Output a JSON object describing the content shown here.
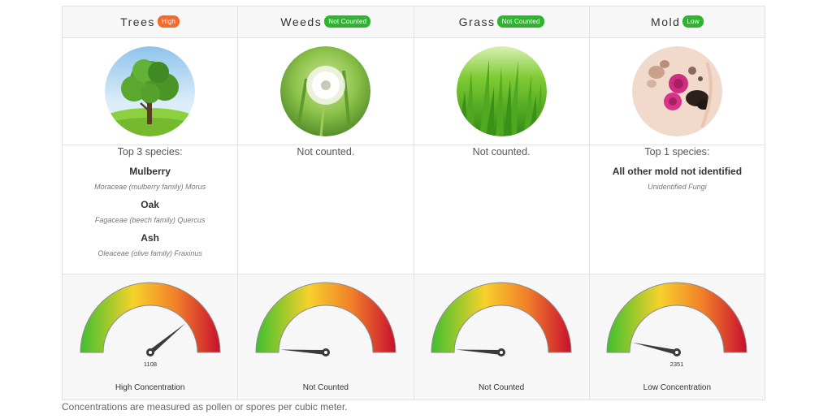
{
  "categories": [
    {
      "title": "Trees",
      "badge": "High",
      "badge_color": "#f26b2c",
      "image": "tree-photo",
      "species_heading": "Top 3 species:",
      "species": [
        {
          "name": "Mulberry",
          "scientific": "Moraceae (mulberry family) Morus"
        },
        {
          "name": "Oak",
          "scientific": "Fagaceae (beech family) Quercus"
        },
        {
          "name": "Ash",
          "scientific": "Oleaceae (olive family) Fraxinus"
        }
      ],
      "gauge_fraction": 0.78,
      "gauge_value": "1108",
      "concentration_label": "High Concentration"
    },
    {
      "title": "Weeds",
      "badge": "Not Counted",
      "badge_color": "#2db52d",
      "image": "dandelion-photo",
      "species_heading": "Not counted.",
      "species": [],
      "gauge_fraction": 0.02,
      "gauge_value": "",
      "concentration_label": "Not Counted"
    },
    {
      "title": "Grass",
      "badge": "Not Counted",
      "badge_color": "#2db52d",
      "image": "grass-photo",
      "species_heading": "Not counted.",
      "species": [],
      "gauge_fraction": 0.02,
      "gauge_value": "",
      "concentration_label": "Not Counted"
    },
    {
      "title": "Mold",
      "badge": "Low",
      "badge_color": "#2db52d",
      "image": "mold-spores-photo",
      "species_heading": "Top 1 species:",
      "species": [
        {
          "name": "All other mold not identified",
          "scientific": "Unidentified Fungi"
        }
      ],
      "gauge_fraction": 0.07,
      "gauge_value": "2351",
      "concentration_label": "Low Concentration"
    }
  ],
  "footnote": "Concentrations are measured as pollen or spores per cubic meter.",
  "colors": {
    "gauge_low": "#3fbf2f",
    "gauge_mid": "#f7d12b",
    "gauge_high_orange": "#f2802a",
    "gauge_high": "#c8102e",
    "needle": "#3a3a3a"
  }
}
